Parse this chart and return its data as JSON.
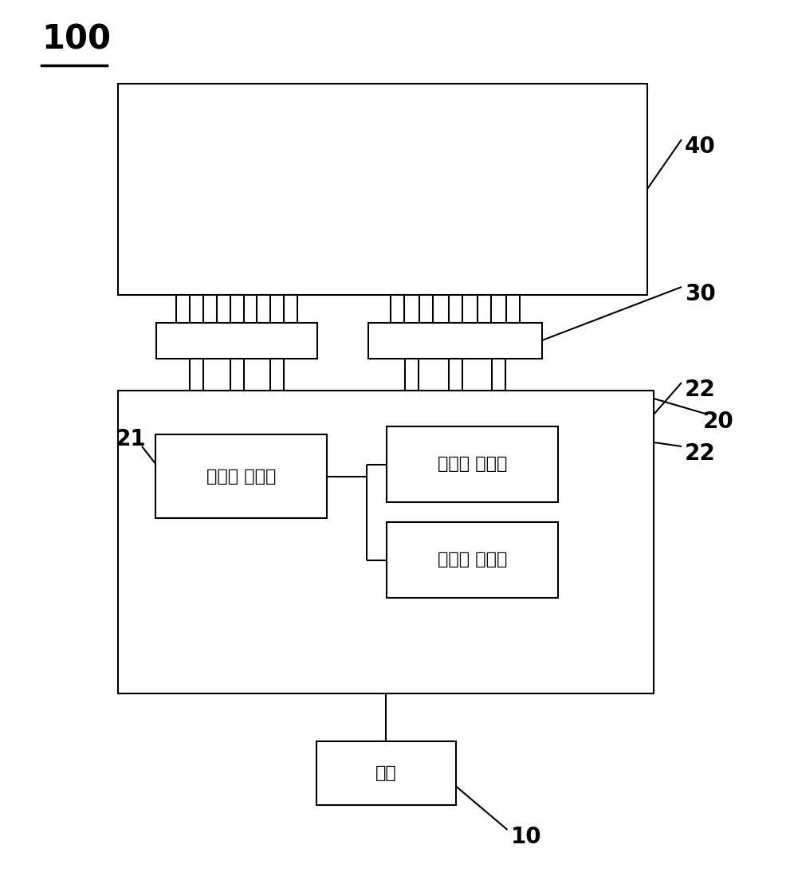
{
  "bg_color": "#ffffff",
  "line_color": "#000000",
  "text_color": "#000000",
  "label_100": "100",
  "label_40": "40",
  "label_30": "30",
  "label_20": "20",
  "label_22a": "22",
  "label_22b": "22",
  "label_21": "21",
  "label_10": "10",
  "text_main_ctrl": "主时序 控制器",
  "text_slave_ctrl1": "从时序 控制器",
  "text_slave_ctrl2": "从时序 控制器",
  "text_mainboard": "主板",
  "font_size_label": 20,
  "font_size_box": 16,
  "font_size_100": 30,
  "lw": 1.5
}
